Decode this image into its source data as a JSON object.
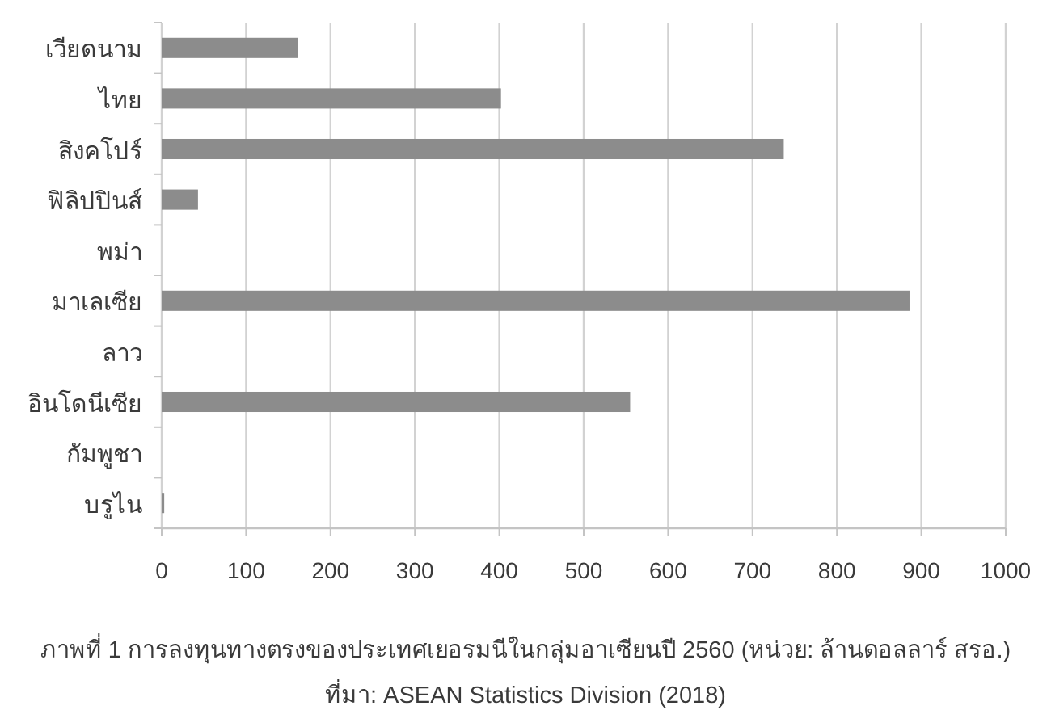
{
  "chart_data": {
    "type": "bar",
    "orientation": "horizontal",
    "categories": [
      "เวียดนาม",
      "ไทย",
      "สิงคโปร์",
      "ฟิลิปปินส์",
      "พม่า",
      "มาเลเซีย",
      "ลาว",
      "อินโดนีเซีย",
      "กัมพูชา",
      "บรูไน"
    ],
    "values": [
      161,
      402,
      737,
      43,
      null,
      886,
      null,
      555,
      null,
      3
    ],
    "color": "#8c8c8c",
    "xlim": [
      0,
      1000
    ],
    "xticks": [
      0,
      100,
      200,
      300,
      400,
      500,
      600,
      700,
      800,
      900,
      1000
    ],
    "grid": "x",
    "title": "ภาพที่ 1 การลงทุนทางตรงของประเทศเยอรมนีในกลุ่มอาเซียนปี 2560 (หน่วย: ล้านดอลลาร์ สรอ.)",
    "annotations": [
      "ที่มา: ASEAN Statistics Division (2018)"
    ]
  }
}
